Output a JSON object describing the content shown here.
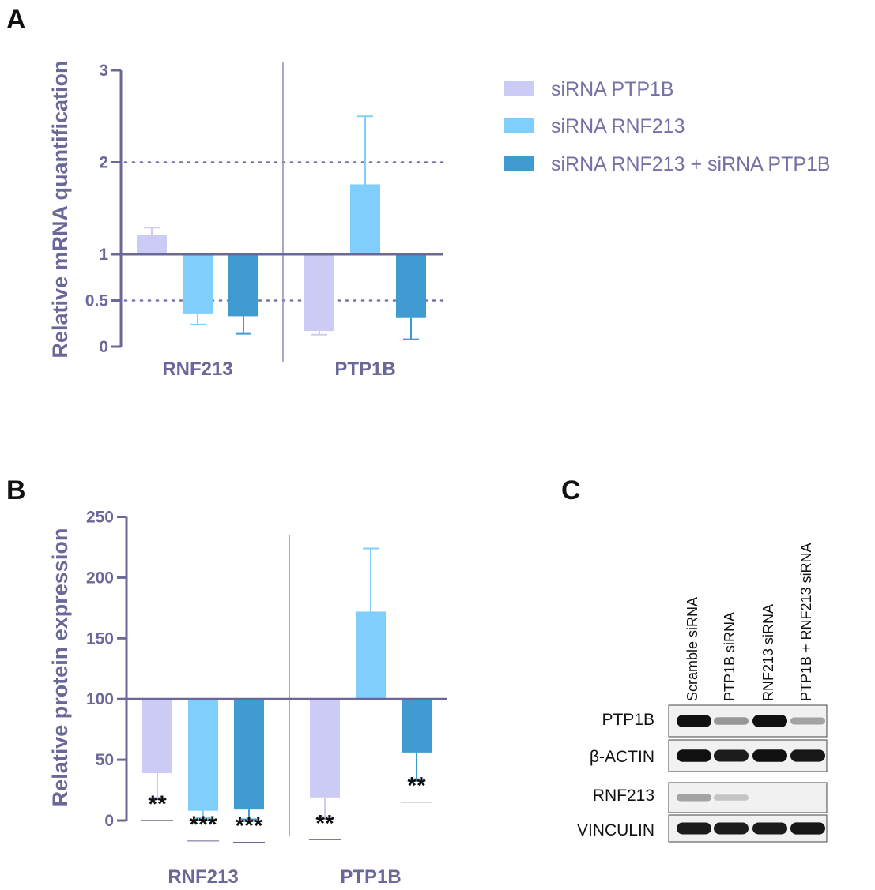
{
  "panels": {
    "a_label": "A",
    "b_label": "B",
    "c_label": "C"
  },
  "legend": [
    {
      "label": "siRNA PTP1B",
      "color": "#cccbf5"
    },
    {
      "label": "siRNA RNF213",
      "color": "#7fcefb"
    },
    {
      "label": "siRNA RNF213 + siRNA PTP1B",
      "color": "#3f9bd0"
    }
  ],
  "chart_data": [
    {
      "type": "bar",
      "panel": "A",
      "ylabel": "Relative mRNA quantification",
      "categories": [
        "RNF213",
        "PTP1B"
      ],
      "baseline": 1,
      "ylim": [
        0,
        3
      ],
      "yticks": [
        0,
        0.5,
        1,
        2,
        3
      ],
      "ytick_labels": [
        "0",
        "0.5",
        "1",
        "2",
        "3"
      ],
      "reference_lines": [
        0.5,
        2
      ],
      "series": [
        {
          "name": "siRNA PTP1B",
          "values": [
            1.21,
            0.17
          ],
          "error": [
            0.08,
            0.04
          ]
        },
        {
          "name": "siRNA RNF213",
          "values": [
            0.36,
            1.76
          ],
          "error": [
            0.12,
            0.74
          ]
        },
        {
          "name": "siRNA RNF213 + siRNA PTP1B",
          "values": [
            0.33,
            0.31
          ],
          "error": [
            0.19,
            0.23
          ]
        }
      ]
    },
    {
      "type": "bar",
      "panel": "B",
      "ylabel": "Relative protein expression",
      "categories": [
        "RNF213",
        "PTP1B"
      ],
      "baseline": 100,
      "ylim": [
        0,
        250
      ],
      "yticks": [
        0,
        50,
        100,
        150,
        200,
        250
      ],
      "ytick_labels": [
        "0",
        "50",
        "100",
        "150",
        "200",
        "250"
      ],
      "series": [
        {
          "name": "siRNA PTP1B",
          "values": [
            39,
            19
          ],
          "error": [
            20,
            16
          ],
          "significance": [
            "**",
            "**"
          ]
        },
        {
          "name": "siRNA RNF213",
          "values": [
            8,
            172
          ],
          "error": [
            6,
            52
          ],
          "significance": [
            "***",
            ""
          ]
        },
        {
          "name": "siRNA RNF213 + siRNA PTP1B",
          "values": [
            9,
            56
          ],
          "error": [
            8,
            22
          ],
          "significance": [
            "***",
            "**"
          ]
        }
      ]
    }
  ],
  "blot": {
    "lanes": [
      "Scramble siRNA",
      "PTP1B siRNA",
      "RNF213 siRNA",
      "PTP1B + RNF213 siRNA"
    ],
    "rows": [
      {
        "label": "PTP1B",
        "intensities": [
          0.95,
          0.35,
          0.95,
          0.3
        ]
      },
      {
        "label": "β-ACTIN",
        "intensities": [
          0.95,
          0.9,
          0.95,
          0.92
        ]
      },
      {
        "label": "RNF213",
        "intensities": [
          0.3,
          0.15,
          0.05,
          0.05
        ]
      },
      {
        "label": "VINCULIN",
        "intensities": [
          0.9,
          0.9,
          0.9,
          0.92
        ]
      }
    ]
  },
  "colors": {
    "axis": "#6a6898",
    "text": "#6a6898"
  }
}
